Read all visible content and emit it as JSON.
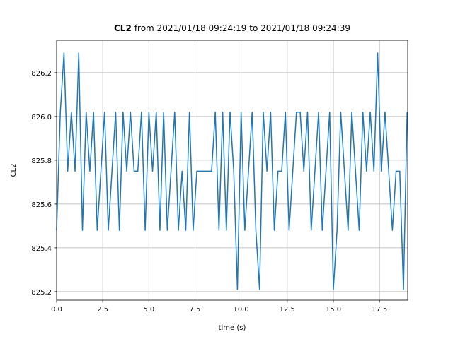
{
  "chart_data": {
    "type": "line",
    "title_variable": "CL2",
    "title_range": "from 2021/01/18 09:24:19 to 2021/01/18 09:24:39",
    "xlabel": "time (s)",
    "ylabel": "CL2",
    "x": [
      0.0,
      0.2,
      0.4,
      0.6,
      0.8,
      1.0,
      1.2,
      1.4,
      1.6,
      1.8,
      2.0,
      2.2,
      2.4,
      2.6,
      2.8,
      3.0,
      3.2,
      3.4,
      3.6,
      3.8,
      4.0,
      4.2,
      4.4,
      4.6,
      4.8,
      5.0,
      5.2,
      5.4,
      5.6,
      5.8,
      6.0,
      6.2,
      6.4,
      6.6,
      6.8,
      7.0,
      7.2,
      7.4,
      7.6,
      7.8,
      8.0,
      8.2,
      8.4,
      8.6,
      8.8,
      9.0,
      9.2,
      9.4,
      9.6,
      9.8,
      10.0,
      10.2,
      10.4,
      10.6,
      10.8,
      11.0,
      11.2,
      11.4,
      11.6,
      11.8,
      12.0,
      12.2,
      12.4,
      12.6,
      12.8,
      13.0,
      13.2,
      13.4,
      13.6,
      13.8,
      14.0,
      14.2,
      14.4,
      14.6,
      14.8,
      15.0,
      15.2,
      15.4,
      15.6,
      15.8,
      16.0,
      16.2,
      16.4,
      16.6,
      16.8,
      17.0,
      17.2,
      17.4,
      17.6,
      17.8,
      18.0,
      18.2,
      18.4,
      18.6,
      18.8,
      19.0
    ],
    "series": [
      {
        "name": "CL2",
        "color": "#1f77b4",
        "values": [
          825.48,
          826.02,
          826.29,
          825.75,
          826.02,
          825.75,
          826.29,
          825.48,
          826.02,
          825.75,
          826.02,
          825.48,
          825.75,
          826.02,
          825.48,
          825.75,
          826.02,
          825.48,
          826.02,
          825.75,
          826.02,
          825.75,
          825.75,
          826.02,
          825.48,
          826.02,
          825.75,
          826.02,
          825.48,
          826.02,
          825.48,
          825.75,
          826.02,
          825.48,
          825.75,
          825.48,
          826.02,
          825.48,
          825.75,
          825.75,
          825.75,
          825.75,
          825.75,
          826.02,
          825.48,
          826.02,
          825.48,
          826.02,
          825.75,
          825.21,
          826.02,
          825.48,
          825.75,
          826.02,
          825.48,
          825.21,
          826.02,
          825.75,
          826.02,
          825.48,
          825.75,
          825.75,
          826.02,
          825.48,
          825.75,
          826.02,
          826.02,
          825.75,
          826.02,
          825.48,
          825.75,
          826.02,
          825.48,
          825.75,
          826.02,
          825.21,
          825.48,
          826.02,
          825.75,
          825.48,
          826.02,
          825.75,
          825.48,
          826.02,
          825.75,
          826.02,
          825.75,
          826.29,
          825.75,
          826.02,
          825.75,
          825.48,
          825.75,
          825.75,
          825.21,
          826.02
        ]
      }
    ],
    "xlim": [
      0,
      19.03
    ],
    "ylim": [
      825.161,
      826.348
    ],
    "xticks": [
      {
        "value": 0,
        "label": "0.0"
      },
      2.5,
      {
        "value": 5,
        "label": "5.0"
      },
      7.5,
      {
        "value": 10,
        "label": "10.0"
      },
      12.5,
      {
        "value": 15,
        "label": "15.0"
      },
      17.5
    ],
    "yticks": [
      825.2,
      825.4,
      825.6,
      825.8,
      {
        "value": 826,
        "label": "826.0"
      },
      826.2
    ],
    "grid": true
  }
}
